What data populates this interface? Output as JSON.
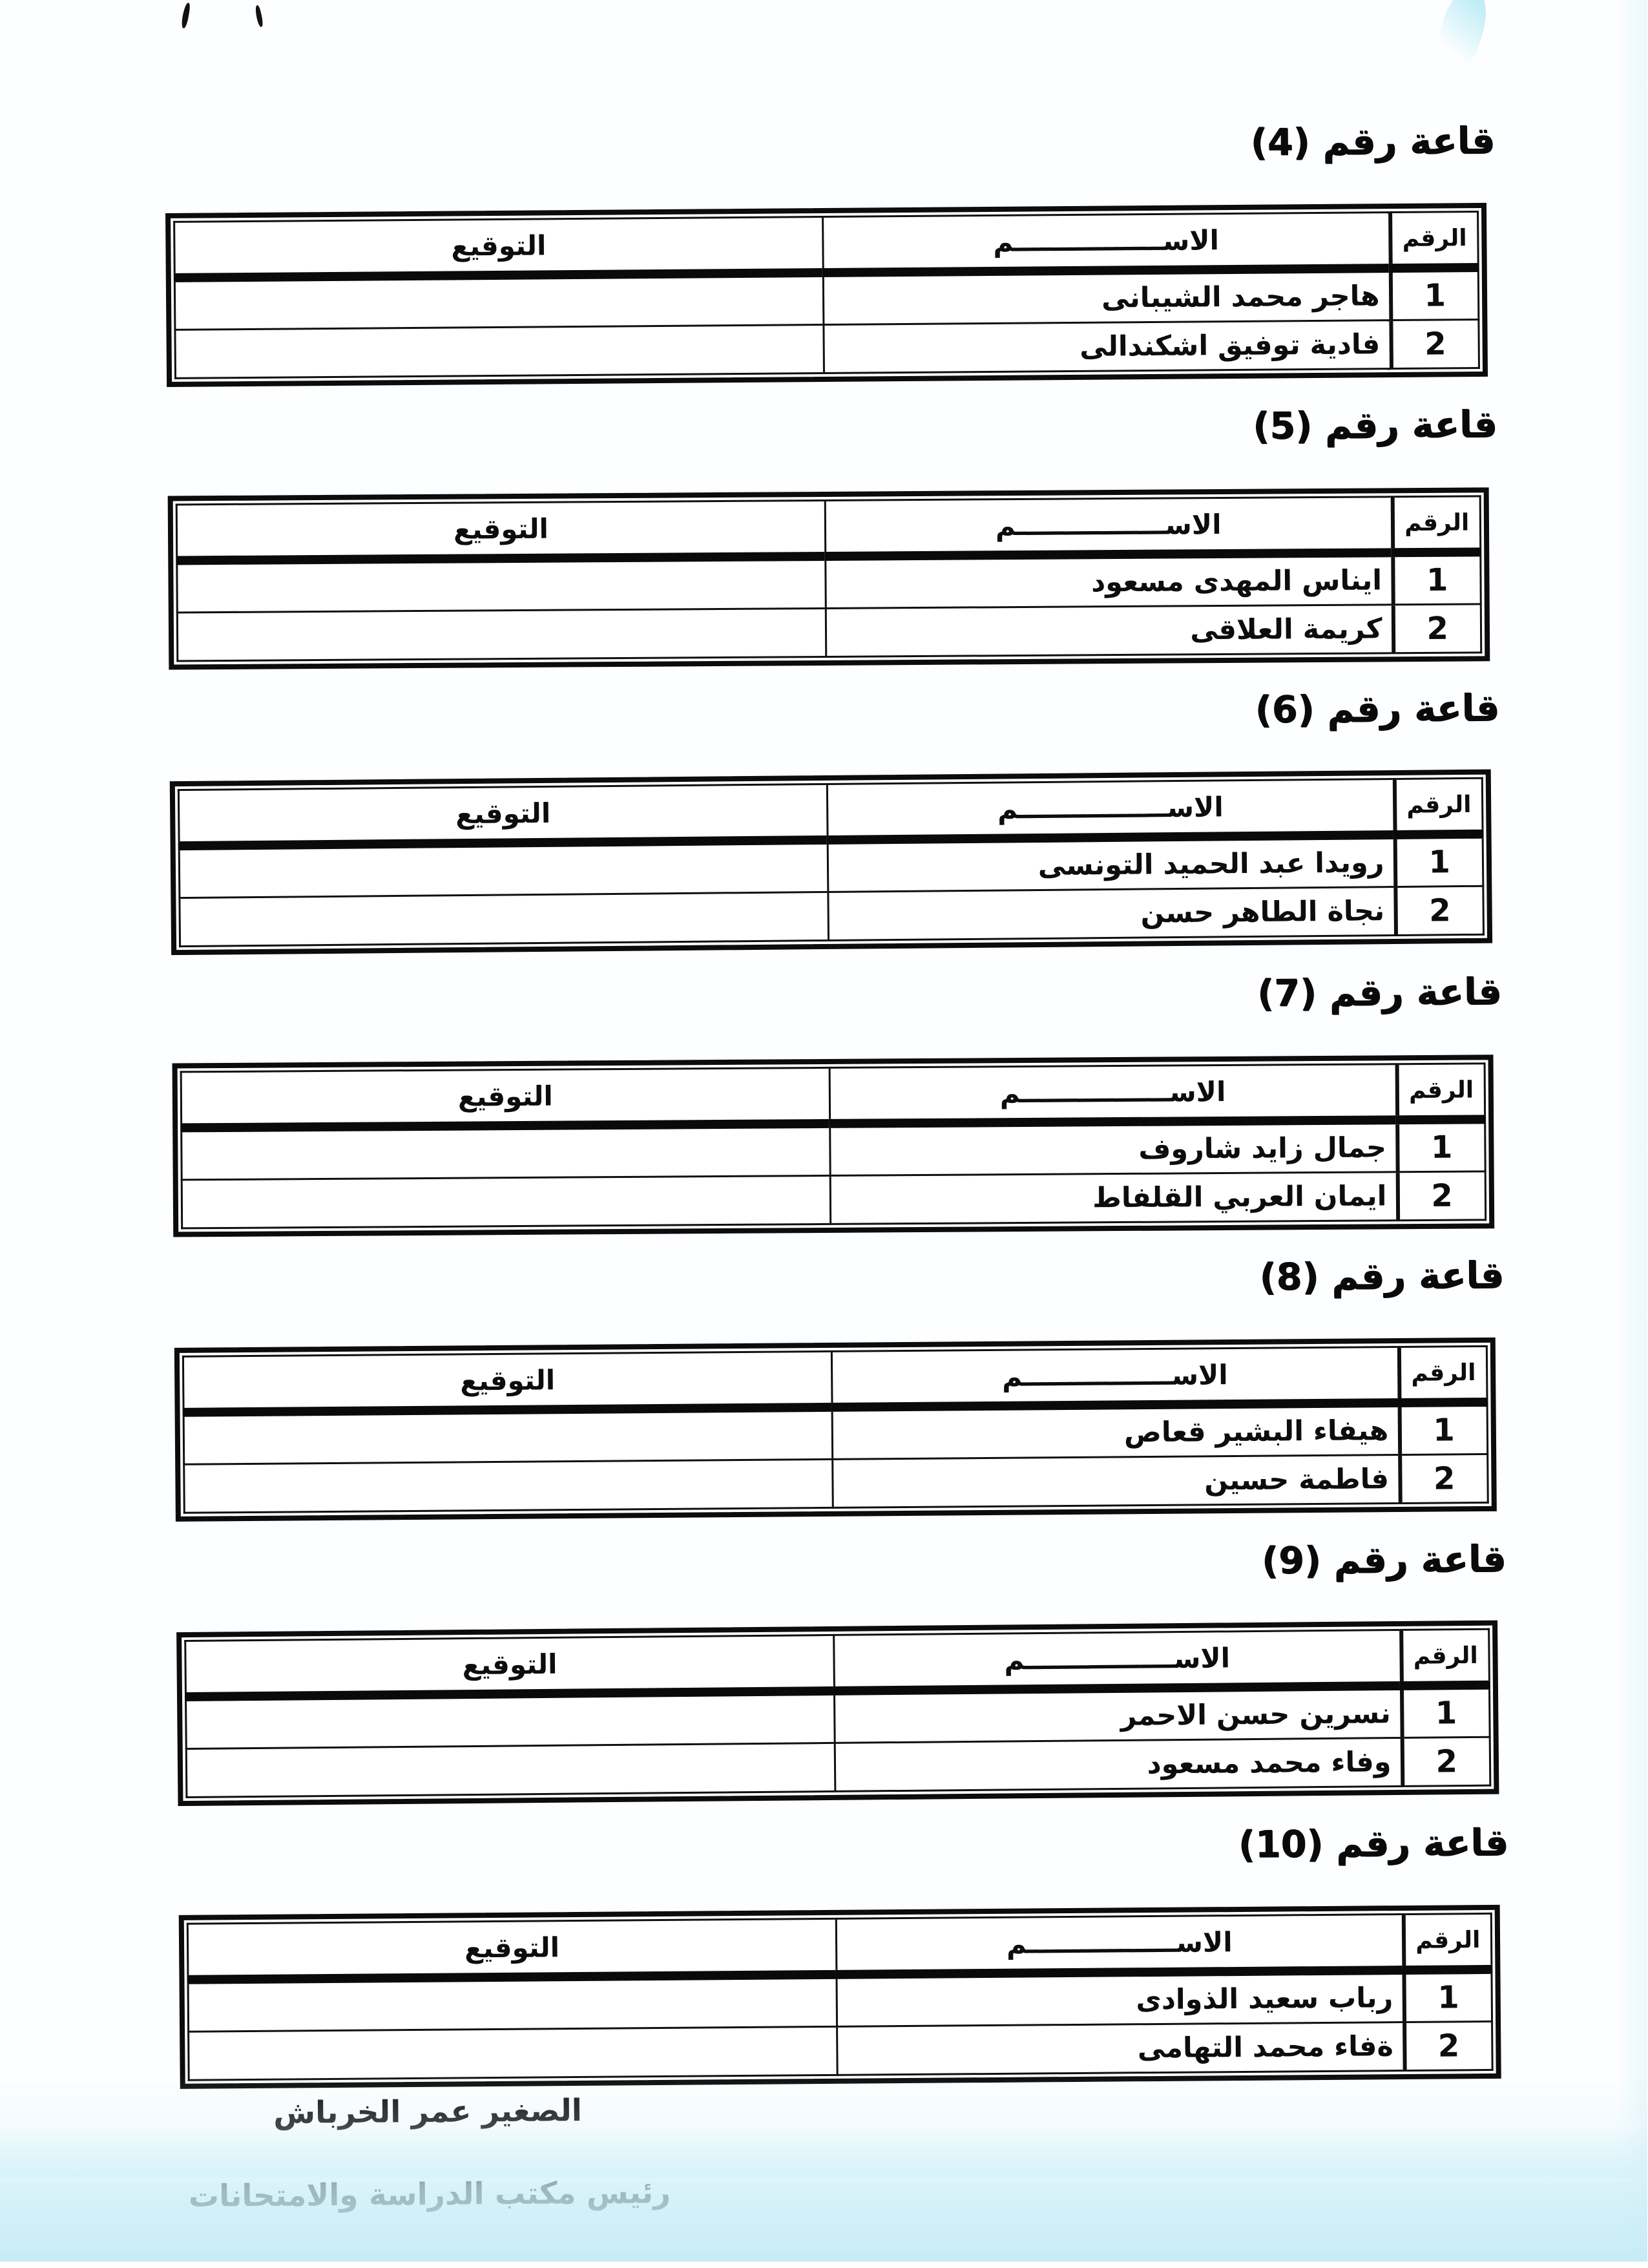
{
  "document": {
    "kind": "scanned-attendance-sheet",
    "ink_color": "#0d0d0d",
    "scan_tint_color": "#cdeef7",
    "footer": {
      "signatory_name": "الصغير عمر الخرباش",
      "signatory_role": "رئيس مكتب الدراسة والامتحانات"
    }
  },
  "table_headers": {
    "number": "الرقم",
    "name": "الاســــــــــــــــم",
    "signature": "التوقيع"
  },
  "sections": [
    {
      "title": "قاعة رقم (4)",
      "rows": [
        {
          "number": "1",
          "name": "هاجر محمد الشيبانى",
          "signature": ""
        },
        {
          "number": "2",
          "name": "فادية توفيق اشكندالى",
          "signature": ""
        }
      ]
    },
    {
      "title": "قاعة رقم (5)",
      "rows": [
        {
          "number": "1",
          "name": "ايناس المهدى مسعود",
          "signature": ""
        },
        {
          "number": "2",
          "name": "كريمة العلاقى",
          "signature": ""
        }
      ]
    },
    {
      "title": "قاعة رقم (6)",
      "rows": [
        {
          "number": "1",
          "name": "رويدا عبد الحميد التونسى",
          "signature": ""
        },
        {
          "number": "2",
          "name": "نجاة الطاهر حسن",
          "signature": ""
        }
      ]
    },
    {
      "title": "قاعة رقم (7)",
      "rows": [
        {
          "number": "1",
          "name": "جمال زايد شاروف",
          "signature": ""
        },
        {
          "number": "2",
          "name": "ايمان العربي القلفاط",
          "signature": ""
        }
      ]
    },
    {
      "title": "قاعة رقم (8)",
      "rows": [
        {
          "number": "1",
          "name": "هيفاء البشير قعاص",
          "signature": ""
        },
        {
          "number": "2",
          "name": "فاطمة حسين",
          "signature": ""
        }
      ]
    },
    {
      "title": "قاعة رقم (9)",
      "rows": [
        {
          "number": "1",
          "name": "نسرين حسن الاحمر",
          "signature": ""
        },
        {
          "number": "2",
          "name": "وفاء محمد مسعود",
          "signature": ""
        }
      ]
    },
    {
      "title": "قاعة رقم (10)",
      "rows": [
        {
          "number": "1",
          "name": "رباب سعيد الذوادى",
          "signature": ""
        },
        {
          "number": "2",
          "name": "ةفاء محمد التهامى",
          "signature": ""
        }
      ]
    }
  ]
}
